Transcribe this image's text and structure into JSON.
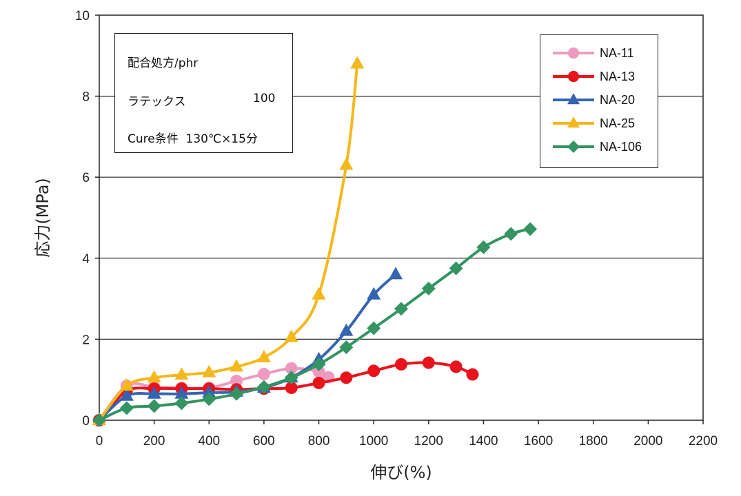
{
  "chart_data": {
    "type": "line",
    "xlabel": "伸び(%)",
    "ylabel": "応力(MPa)",
    "xlim": [
      0,
      2200
    ],
    "ylim": [
      0,
      10
    ],
    "xticks": [
      "0",
      "200",
      "400",
      "600",
      "800",
      "1000",
      "1200",
      "1400",
      "1600",
      "1800",
      "2000",
      "2200"
    ],
    "yticks": [
      "0",
      "2",
      "4",
      "6",
      "8",
      "10"
    ],
    "grid": "horizontal",
    "legend_position": "top-right",
    "series": [
      {
        "name": "NA-11",
        "color": "#ee9ac0",
        "marker": "circle",
        "x": [
          0,
          100,
          200,
          300,
          400,
          500,
          600,
          700,
          800,
          835
        ],
        "y": [
          0,
          0.85,
          0.82,
          0.8,
          0.8,
          0.97,
          1.14,
          1.28,
          1.2,
          1.06
        ]
      },
      {
        "name": "NA-13",
        "color": "#e8141c",
        "marker": "circle",
        "x": [
          0,
          100,
          200,
          300,
          400,
          500,
          600,
          700,
          800,
          900,
          1000,
          1100,
          1200,
          1300,
          1360
        ],
        "y": [
          0,
          0.72,
          0.78,
          0.78,
          0.78,
          0.76,
          0.78,
          0.8,
          0.92,
          1.05,
          1.22,
          1.38,
          1.42,
          1.32,
          1.13
        ]
      },
      {
        "name": "NA-20",
        "color": "#3564b0",
        "marker": "triangle",
        "x": [
          0,
          100,
          200,
          300,
          400,
          500,
          600,
          700,
          800,
          900,
          1000,
          1080
        ],
        "y": [
          0,
          0.6,
          0.65,
          0.65,
          0.68,
          0.7,
          0.8,
          1.05,
          1.5,
          2.2,
          3.1,
          3.6
        ]
      },
      {
        "name": "NA-25",
        "color": "#f4b81c",
        "marker": "triangle",
        "x": [
          0,
          100,
          200,
          300,
          400,
          500,
          600,
          700,
          800,
          900,
          940
        ],
        "y": [
          0,
          0.85,
          1.05,
          1.12,
          1.18,
          1.32,
          1.55,
          2.05,
          3.1,
          6.3,
          8.8
        ]
      },
      {
        "name": "NA-106",
        "color": "#349462",
        "marker": "diamond",
        "x": [
          0,
          100,
          200,
          300,
          400,
          500,
          600,
          700,
          800,
          900,
          1000,
          1100,
          1200,
          1300,
          1400,
          1500,
          1570
        ],
        "y": [
          0,
          0.3,
          0.35,
          0.42,
          0.52,
          0.65,
          0.82,
          1.05,
          1.38,
          1.8,
          2.27,
          2.75,
          3.25,
          3.75,
          4.27,
          4.6,
          4.72
        ]
      }
    ]
  },
  "annotation": {
    "line1": "配合処方/phr",
    "line2_label": "ラテックス",
    "line2_value": "100",
    "line3": "Cure条件  130℃×15分"
  }
}
